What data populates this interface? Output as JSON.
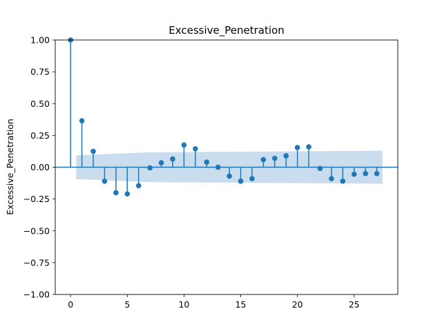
{
  "chart_data": {
    "type": "scatter",
    "subtype": "stem",
    "title": "Excessive_Penetration",
    "xlabel": "",
    "ylabel": "Excessive_Penetration",
    "xlim": [
      -1.35,
      28.85
    ],
    "ylim": [
      -1.0,
      1.0
    ],
    "grid": false,
    "legend": "none",
    "x_ticks": [
      0,
      5,
      10,
      15,
      20,
      25
    ],
    "x_tick_labels": [
      "0",
      "5",
      "10",
      "15",
      "20",
      "25"
    ],
    "y_ticks": [
      1.0,
      0.75,
      0.5,
      0.25,
      0.0,
      -0.25,
      -0.5,
      -0.75,
      -1.0
    ],
    "y_tick_labels": [
      "1.00",
      "0.75",
      "0.50",
      "0.25",
      "0.00",
      "−0.25",
      "−0.50",
      "−0.75",
      "−1.00"
    ],
    "colors": {
      "stem": "#1f77b4",
      "confidence_band": "#c3d9ec"
    },
    "series": [
      {
        "lags": [
          0,
          1,
          2,
          3,
          4,
          5,
          6,
          7,
          8,
          9,
          10,
          11,
          12,
          13,
          14,
          15,
          16,
          17,
          18,
          19,
          20,
          21,
          22,
          23,
          24,
          25,
          26,
          27
        ],
        "values": [
          1.0,
          0.365,
          0.125,
          -0.11,
          -0.2,
          -0.21,
          -0.145,
          -0.005,
          0.035,
          0.065,
          0.175,
          0.145,
          0.04,
          0.0,
          -0.07,
          -0.11,
          -0.09,
          0.06,
          0.07,
          0.09,
          0.155,
          0.16,
          -0.01,
          -0.09,
          -0.11,
          -0.055,
          -0.05,
          -0.05
        ]
      }
    ],
    "confidence_band": {
      "lags": [
        0.5,
        1,
        2,
        3,
        5,
        7,
        10,
        15,
        20,
        25,
        27.5
      ],
      "upper": [
        0.095,
        0.095,
        0.098,
        0.103,
        0.11,
        0.117,
        0.119,
        0.122,
        0.125,
        0.128,
        0.13
      ]
    }
  }
}
